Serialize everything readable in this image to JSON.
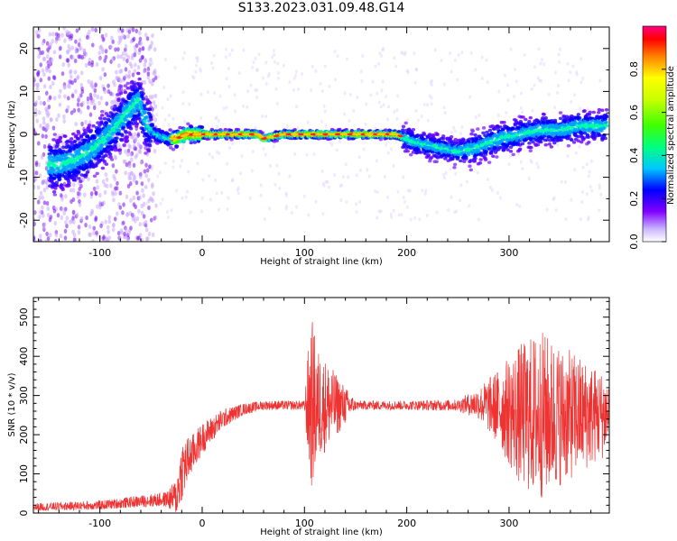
{
  "title": "S133.2023.031.09.48.G14",
  "chart_data": [
    {
      "type": "heatmap",
      "title": "S133.2023.031.09.48.G14",
      "xlabel": "Height of straight line (km)",
      "ylabel": "Frequency (Hz)",
      "xlim": [
        -165,
        398
      ],
      "ylim": [
        -25,
        25
      ],
      "x_ticks": [
        -100,
        0,
        100,
        200,
        300
      ],
      "y_ticks": [
        -20,
        -10,
        0,
        10,
        20
      ],
      "colorbar": {
        "label": "Normalized spectral amplitude",
        "range": [
          0,
          1
        ],
        "ticks": [
          "0.0",
          "0.2",
          "0.4",
          "0.6",
          "0.8"
        ]
      },
      "ridge": {
        "x": [
          -140,
          -125,
          -110,
          -95,
          -80,
          -70,
          -62,
          -55,
          -45,
          -35,
          -25,
          -15,
          0,
          20,
          40,
          55,
          60,
          80,
          100,
          120,
          150,
          190,
          210,
          230,
          250,
          270,
          290,
          310,
          330,
          350,
          370,
          390
        ],
        "y": [
          -7,
          -6,
          -4,
          -1,
          3,
          6,
          8,
          3,
          0,
          -1,
          -1,
          0,
          0,
          0,
          0,
          0,
          -1,
          0,
          0,
          0,
          0,
          0,
          -2,
          -3,
          -4,
          -3,
          -1,
          0,
          1,
          1,
          2,
          2
        ]
      }
    },
    {
      "type": "line",
      "xlabel": "Height of straight line (km)",
      "ylabel": "SNR (10 * v/v)",
      "xlim": [
        -165,
        398
      ],
      "ylim": [
        0,
        550
      ],
      "x_ticks": [
        -100,
        0,
        100,
        200,
        300
      ],
      "y_ticks": [
        0,
        100,
        200,
        300,
        400,
        500
      ],
      "color": "#ee3333",
      "envelope": {
        "x": [
          -165,
          -100,
          -60,
          -35,
          -25,
          -20,
          -10,
          0,
          20,
          40,
          60,
          100,
          105,
          108,
          112,
          150,
          200,
          250,
          270,
          290,
          310,
          330,
          350,
          370,
          398
        ],
        "mean": [
          15,
          20,
          30,
          35,
          40,
          110,
          150,
          190,
          240,
          265,
          275,
          275,
          275,
          275,
          275,
          275,
          275,
          275,
          280,
          270,
          250,
          250,
          250,
          250,
          250
        ],
        "amp": [
          10,
          12,
          15,
          20,
          50,
          80,
          50,
          40,
          25,
          15,
          12,
          12,
          200,
          220,
          150,
          12,
          12,
          15,
          40,
          100,
          180,
          220,
          180,
          150,
          100
        ]
      }
    }
  ]
}
